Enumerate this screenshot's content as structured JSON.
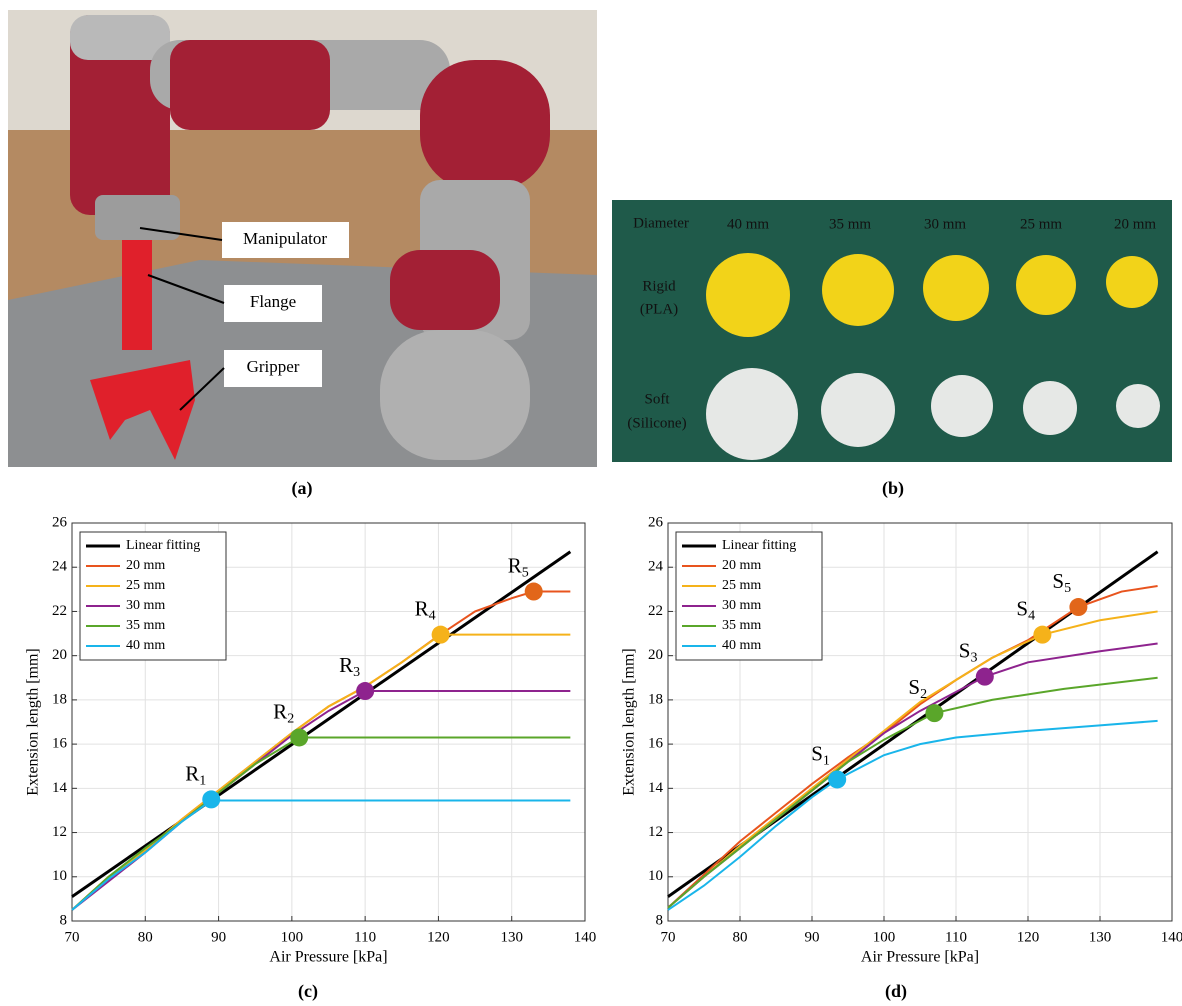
{
  "panel_a": {
    "labels": [
      "Manipulator",
      "Flange",
      "Gripper"
    ],
    "caption": "(a)"
  },
  "panel_b": {
    "header": "Diameter",
    "sizes": [
      "40 mm",
      "35 mm",
      "30 mm",
      "25 mm",
      "20 mm"
    ],
    "rows": [
      [
        "Rigid",
        "(PLA)"
      ],
      [
        "Soft",
        "(Silicone)"
      ]
    ],
    "caption": "(b)"
  },
  "chart_data": [
    {
      "type": "line",
      "caption": "(c)",
      "xlabel": "Air Pressure [kPa]",
      "ylabel": "Extension length [mm]",
      "xlim": [
        70,
        140
      ],
      "ylim": [
        8,
        26
      ],
      "xticks": [
        70,
        80,
        90,
        100,
        110,
        120,
        130,
        140
      ],
      "yticks": [
        8,
        10,
        12,
        14,
        16,
        18,
        20,
        22,
        24,
        26
      ],
      "grid": true,
      "legend": "upper left",
      "series": [
        {
          "name": "Linear fitting",
          "color": "#000000",
          "x": [
            70,
            138
          ],
          "values": [
            9.1,
            24.7
          ]
        },
        {
          "name": "20 mm",
          "color": "#e8541e",
          "x": [
            70,
            75,
            80,
            85,
            90,
            95,
            100,
            105,
            110,
            115,
            120,
            125,
            130,
            133,
            138
          ],
          "values": [
            8.5,
            10.0,
            11.2,
            12.6,
            13.9,
            15.2,
            16.5,
            17.7,
            18.6,
            19.7,
            20.9,
            22.0,
            22.6,
            22.9,
            22.9
          ]
        },
        {
          "name": "25 mm",
          "color": "#f5b21a",
          "x": [
            70,
            75,
            80,
            85,
            90,
            95,
            100,
            105,
            110,
            115,
            120.3,
            138
          ],
          "values": [
            8.5,
            10.0,
            11.2,
            12.6,
            13.9,
            15.2,
            16.5,
            17.7,
            18.6,
            19.7,
            20.95,
            20.95
          ]
        },
        {
          "name": "30 mm",
          "color": "#8e238e",
          "x": [
            70,
            75,
            80,
            85,
            90,
            95,
            100,
            105,
            110,
            138
          ],
          "values": [
            8.5,
            9.8,
            11.1,
            12.5,
            13.8,
            15.1,
            16.4,
            17.5,
            18.4,
            18.4
          ]
        },
        {
          "name": "35 mm",
          "color": "#5aa62a",
          "x": [
            70,
            75,
            80,
            85,
            90,
            95,
            101,
            138
          ],
          "values": [
            8.5,
            10.0,
            11.3,
            12.5,
            13.8,
            15.1,
            16.3,
            16.3
          ]
        },
        {
          "name": "40 mm",
          "color": "#19b5ea",
          "x": [
            70,
            75,
            80,
            85,
            89,
            138
          ],
          "values": [
            8.5,
            9.9,
            11.1,
            12.5,
            13.45,
            13.45
          ]
        }
      ],
      "markers": [
        {
          "label": "R",
          "sub": "1",
          "x": 89,
          "y": 13.5,
          "color": "#19b5ea"
        },
        {
          "label": "R",
          "sub": "2",
          "x": 101,
          "y": 16.3,
          "color": "#5aa62a"
        },
        {
          "label": "R",
          "sub": "3",
          "x": 110,
          "y": 18.4,
          "color": "#8e238e"
        },
        {
          "label": "R",
          "sub": "4",
          "x": 120.3,
          "y": 20.95,
          "color": "#f5b21a"
        },
        {
          "label": "R",
          "sub": "5",
          "x": 133,
          "y": 22.9,
          "color": "#e2661a"
        }
      ]
    },
    {
      "type": "line",
      "caption": "(d)",
      "xlabel": "Air Pressure [kPa]",
      "ylabel": "Extension length [mm]",
      "xlim": [
        70,
        140
      ],
      "ylim": [
        8,
        26
      ],
      "xticks": [
        70,
        80,
        90,
        100,
        110,
        120,
        130,
        140
      ],
      "yticks": [
        8,
        10,
        12,
        14,
        16,
        18,
        20,
        22,
        24,
        26
      ],
      "grid": true,
      "legend": "upper left",
      "series": [
        {
          "name": "Linear fitting",
          "color": "#000000",
          "x": [
            70,
            138
          ],
          "values": [
            9.1,
            24.7
          ]
        },
        {
          "name": "20 mm",
          "color": "#e8541e",
          "x": [
            70,
            75,
            80,
            85,
            90,
            95,
            100,
            105,
            110,
            115,
            120,
            127,
            133,
            138
          ],
          "values": [
            8.6,
            10.1,
            11.6,
            12.9,
            14.2,
            15.4,
            16.5,
            17.8,
            18.9,
            19.9,
            20.7,
            22.2,
            22.9,
            23.15
          ]
        },
        {
          "name": "25 mm",
          "color": "#f5b21a",
          "x": [
            70,
            75,
            80,
            85,
            90,
            95,
            100,
            105,
            110,
            115,
            122,
            130,
            138
          ],
          "values": [
            8.6,
            10.0,
            11.4,
            12.7,
            14.0,
            15.3,
            16.6,
            17.9,
            18.9,
            19.9,
            20.95,
            21.6,
            22.0
          ]
        },
        {
          "name": "30 mm",
          "color": "#8e238e",
          "x": [
            70,
            75,
            80,
            85,
            90,
            95,
            100,
            105,
            114,
            120,
            130,
            138
          ],
          "values": [
            8.6,
            10.0,
            11.3,
            12.6,
            13.9,
            15.2,
            16.5,
            17.5,
            19.05,
            19.7,
            20.2,
            20.55
          ]
        },
        {
          "name": "35 mm",
          "color": "#5aa62a",
          "x": [
            70,
            75,
            80,
            85,
            90,
            95,
            100,
            107,
            115,
            125,
            138
          ],
          "values": [
            8.6,
            10.0,
            11.3,
            12.6,
            13.9,
            15.2,
            16.2,
            17.4,
            18.0,
            18.5,
            19.0
          ]
        },
        {
          "name": "40 mm",
          "color": "#19b5ea",
          "x": [
            70,
            75,
            80,
            85,
            90,
            93.5,
            100,
            105,
            110,
            120,
            130,
            138
          ],
          "values": [
            8.5,
            9.6,
            10.9,
            12.3,
            13.6,
            14.4,
            15.5,
            16.0,
            16.3,
            16.6,
            16.85,
            17.05
          ]
        }
      ],
      "markers": [
        {
          "label": "S",
          "sub": "1",
          "x": 93.5,
          "y": 14.4,
          "color": "#19b5ea"
        },
        {
          "label": "S",
          "sub": "2",
          "x": 107,
          "y": 17.4,
          "color": "#5aa62a"
        },
        {
          "label": "S",
          "sub": "3",
          "x": 114,
          "y": 19.05,
          "color": "#8e238e"
        },
        {
          "label": "S",
          "sub": "4",
          "x": 122,
          "y": 20.95,
          "color": "#f5b21a"
        },
        {
          "label": "S",
          "sub": "5",
          "x": 127,
          "y": 22.2,
          "color": "#e2661a"
        }
      ]
    }
  ]
}
